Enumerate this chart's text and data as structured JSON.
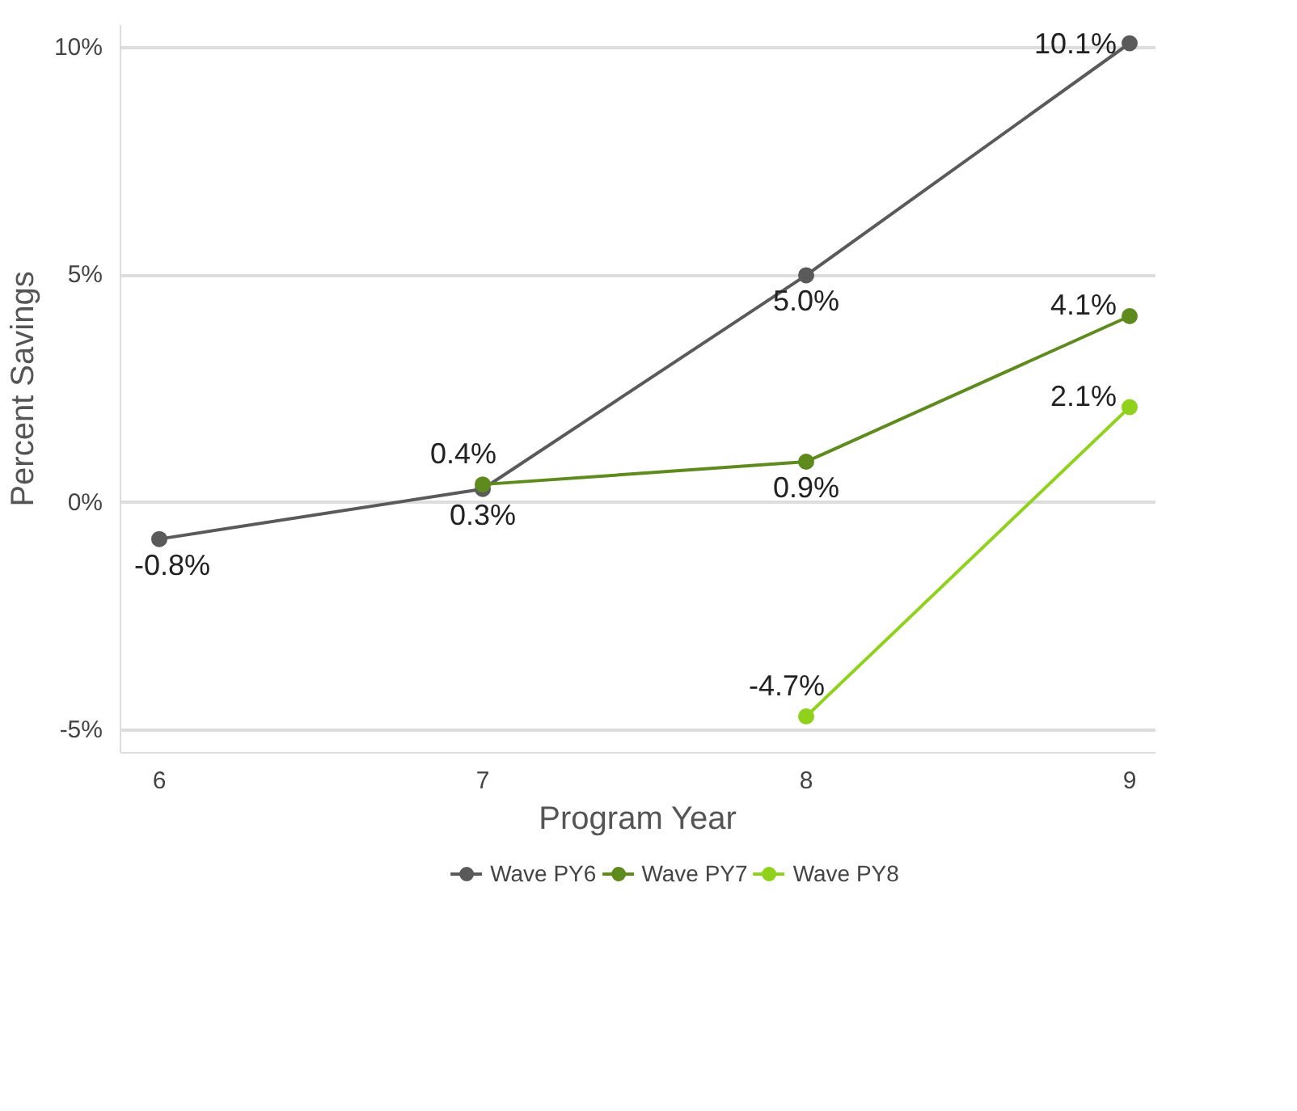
{
  "chart_data": {
    "type": "line",
    "xlabel": "Program Year",
    "ylabel": "Percent Savings",
    "x": [
      6,
      7,
      8,
      9
    ],
    "series": [
      {
        "name": "Wave PY6",
        "color": "#5a5a5a",
        "values": [
          -0.8,
          0.3,
          5.0,
          10.1
        ],
        "value_labels": [
          "-0.8%",
          "0.3%",
          "5.0%",
          "10.1%"
        ]
      },
      {
        "name": "Wave PY7",
        "color": "#5e8a1e",
        "values": [
          null,
          0.4,
          0.9,
          4.1
        ],
        "value_labels": [
          null,
          "0.4%",
          "0.9%",
          "4.1%"
        ]
      },
      {
        "name": "Wave PY8",
        "color": "#8fd11c",
        "values": [
          null,
          null,
          -4.7,
          2.1
        ],
        "value_labels": [
          null,
          null,
          "-4.7%",
          "2.1%"
        ]
      }
    ],
    "xlim": [
      5.88,
      9.08
    ],
    "ylim": [
      -5.5,
      10.5
    ],
    "xticks": [
      6,
      7,
      8,
      9
    ],
    "yticks": [
      {
        "value": -5,
        "label": "-5%"
      },
      {
        "value": 0,
        "label": "0%"
      },
      {
        "value": 5,
        "label": "5%"
      },
      {
        "value": 10,
        "label": "10%"
      }
    ],
    "grid": "y",
    "legend": "bottom",
    "marker": "circle",
    "line_style": "solid"
  }
}
